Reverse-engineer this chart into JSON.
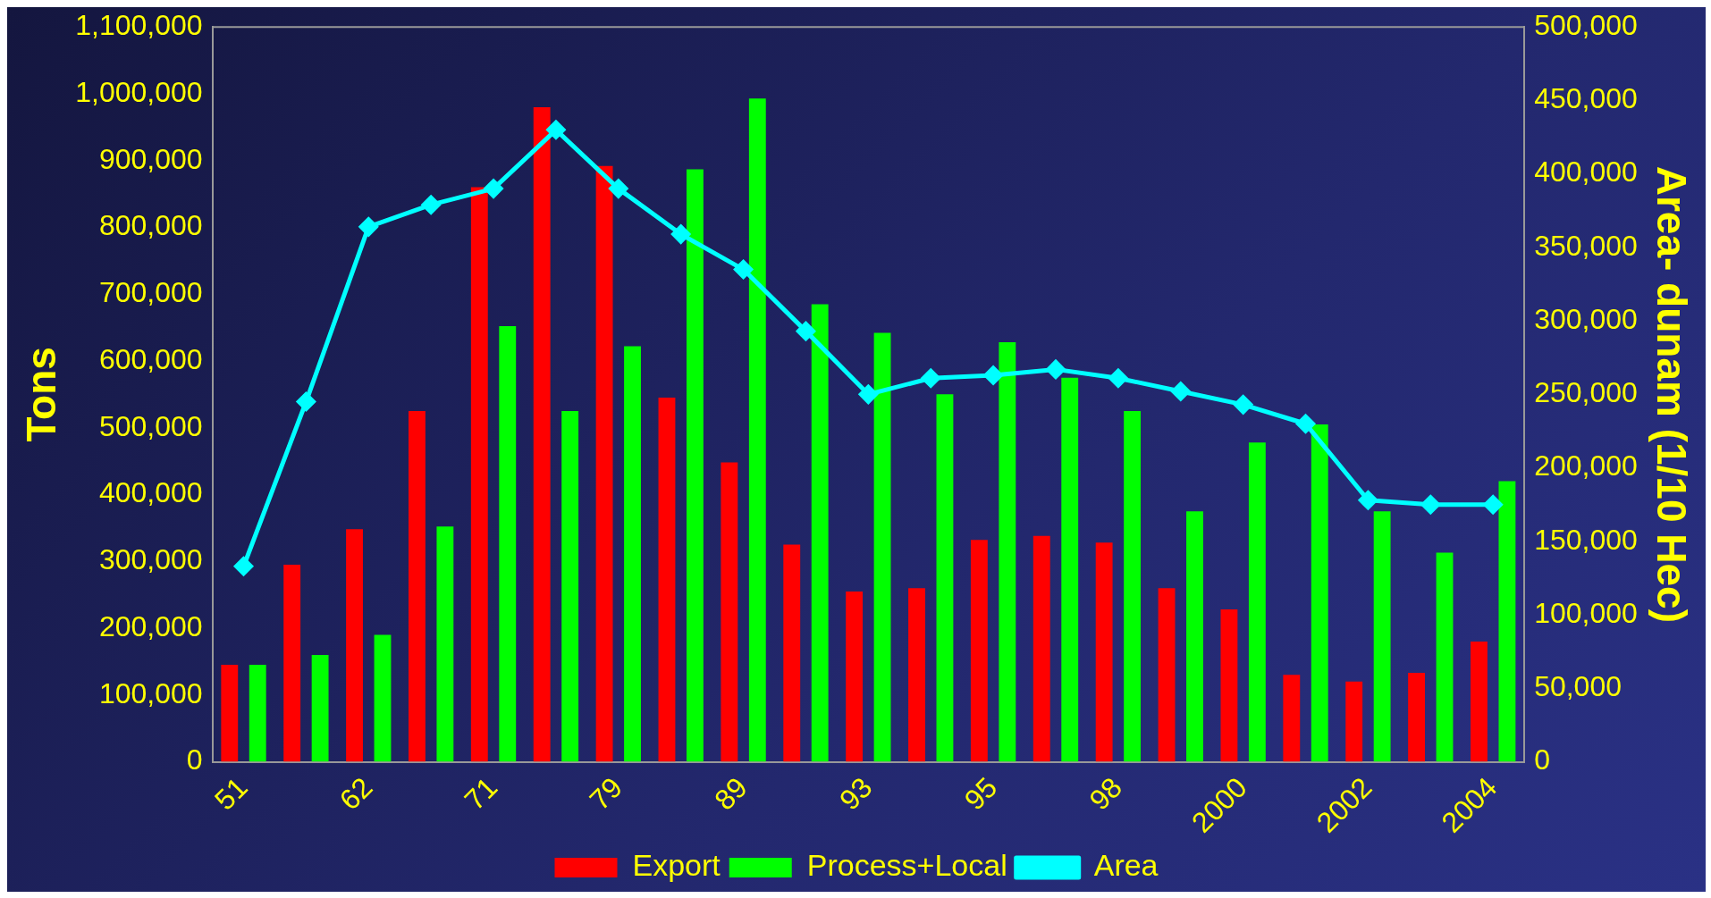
{
  "chart_data": {
    "type": "bar",
    "categories": [
      "51",
      null,
      "62",
      null,
      "71",
      null,
      "79",
      null,
      "89",
      null,
      "93",
      null,
      "95",
      null,
      "98",
      null,
      "2000",
      null,
      "2002",
      null,
      "2004"
    ],
    "ylabel": "Tons",
    "y2label": "Area- dunam (1/10 Hec)",
    "ylim": [
      0,
      1100000
    ],
    "yticks": [
      0,
      {
        "value": 100000,
        "label": "100,000"
      },
      {
        "value": 200000,
        "label": "200,000"
      },
      {
        "value": 300000,
        "label": "300,000"
      },
      {
        "value": 400000,
        "label": "400,000"
      },
      {
        "value": 500000,
        "label": "500,000"
      },
      {
        "value": 600000,
        "label": "600,000"
      },
      {
        "value": 700000,
        "label": "700,000"
      },
      {
        "value": 800000,
        "label": "800,000"
      },
      {
        "value": 900000,
        "label": "900,000"
      },
      {
        "value": 1000000,
        "label": "1,000,000"
      },
      {
        "value": 1100000,
        "label": "1,100,000"
      }
    ],
    "y2lim": [
      0,
      500000
    ],
    "y2ticks": [
      0,
      {
        "value": 50000,
        "label": "50,000"
      },
      {
        "value": 100000,
        "label": "100,000"
      },
      {
        "value": 150000,
        "label": "150,000"
      },
      {
        "value": 200000,
        "label": "200,000"
      },
      {
        "value": 250000,
        "label": "250,000"
      },
      {
        "value": 300000,
        "label": "300,000"
      },
      {
        "value": 350000,
        "label": "350,000"
      },
      {
        "value": 400000,
        "label": "400,000"
      },
      {
        "value": 450000,
        "label": "450,000"
      },
      {
        "value": 500000,
        "label": "500,000"
      }
    ],
    "grid": false,
    "legend": "bottom",
    "marker": "diamond",
    "line_style": "solid",
    "series": [
      {
        "name": "Export",
        "color": "#ff0000",
        "values": [
          145000,
          295000,
          348000,
          525000,
          860000,
          980000,
          892000,
          545000,
          448000,
          325000,
          255000,
          260000,
          332000,
          338000,
          328000,
          260000,
          228000,
          130000,
          120000,
          133000,
          180000
        ]
      },
      {
        "name": "Process+Local",
        "color": "#00ff00",
        "values": [
          145000,
          160000,
          190000,
          352000,
          652000,
          525000,
          622000,
          887000,
          993000,
          685000,
          642000,
          550000,
          628000,
          575000,
          525000,
          375000,
          478000,
          505000,
          375000,
          313000,
          420000
        ]
      },
      {
        "name": "Area",
        "type": "line",
        "axis": "y2",
        "color": "#00ffff",
        "values": [
          133000,
          245000,
          364000,
          379000,
          390000,
          430000,
          390000,
          359000,
          335000,
          293000,
          250000,
          261000,
          263000,
          267000,
          261000,
          252000,
          243000,
          230000,
          178000,
          175000,
          175000
        ]
      }
    ]
  }
}
